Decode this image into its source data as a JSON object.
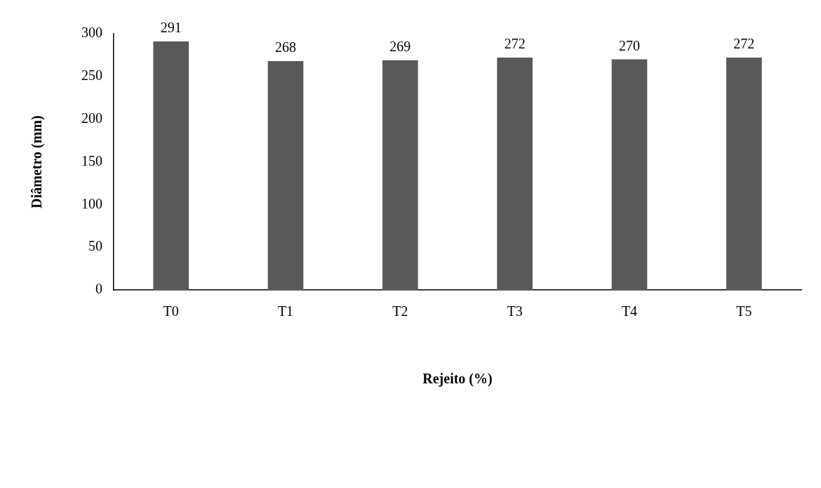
{
  "chart_data": {
    "type": "bar",
    "xlabel": "Rejeito (%)",
    "ylabel": "Diâmetro (mm)",
    "categories": [
      "T0",
      "T1",
      "T2",
      "T3",
      "T4",
      "T5"
    ],
    "values": [
      291,
      268,
      269,
      272,
      270,
      272
    ],
    "color": "#595959",
    "ylim": [
      0,
      300
    ],
    "yticks": [
      0,
      50,
      100,
      150,
      200,
      250,
      300
    ],
    "data_labels": true,
    "legend": false
  }
}
